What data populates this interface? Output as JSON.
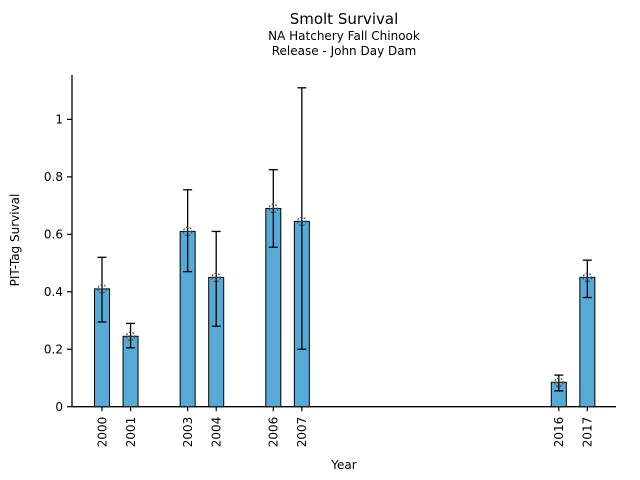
{
  "chart_data": {
    "type": "bar",
    "title": "Smolt Survival",
    "subtitle": [
      "NA Hatchery Fall Chinook",
      "Release - John Day Dam"
    ],
    "xlabel": "Year",
    "ylabel": "PIT-Tag Survival",
    "categories": [
      "2000",
      "2001",
      "2003",
      "2004",
      "2006",
      "2007",
      "2016",
      "2017"
    ],
    "values": [
      0.41,
      0.245,
      0.61,
      0.45,
      0.69,
      0.645,
      0.085,
      0.45
    ],
    "error_low": [
      0.295,
      0.205,
      0.47,
      0.28,
      0.555,
      0.2,
      0.055,
      0.38
    ],
    "error_high": [
      0.52,
      0.29,
      0.755,
      0.61,
      0.825,
      1.11,
      0.11,
      0.51
    ],
    "yticks": [
      0,
      0.2,
      0.4,
      0.6,
      0.8,
      1
    ],
    "ytick_labels": [
      "0",
      "0.2",
      "0.4",
      "0.6",
      "0.8",
      "1"
    ],
    "ylim": [
      0,
      1.155
    ],
    "grid": false,
    "legend": null,
    "bar_color": "#57a9d6",
    "bar_edge_color": "#000000",
    "errorbar_color": "#000000",
    "marker": "dashed-circle-cross",
    "marker_color": "#4d4d4d",
    "background_color": "#ffffff"
  }
}
